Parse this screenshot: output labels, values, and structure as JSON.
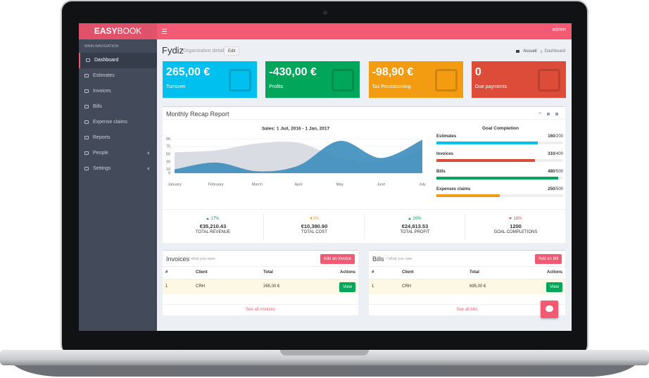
{
  "brand": {
    "bold": "EASY",
    "light": "BOOK"
  },
  "topbar": {
    "user": "adrien",
    "color": "#f25a74"
  },
  "sidebar": {
    "heading": "MAIN NAVIGATION",
    "items": [
      "Dashboard",
      "Estimates",
      "Invoices",
      "Bills",
      "Expense claims",
      "Reports",
      "People",
      "Settings"
    ],
    "active": 0,
    "submenus": [
      6,
      7
    ]
  },
  "header": {
    "title": "Fydiz",
    "subtitle": "Organization detail",
    "button": "Edit",
    "breadcrumb": [
      "Accueil",
      "Dashboard"
    ]
  },
  "cards": [
    {
      "value": "265,00 €",
      "label": "Turnover",
      "color": "#00c0ef"
    },
    {
      "value": "-430,00 €",
      "label": "Profits",
      "color": "#00a65a"
    },
    {
      "value": "-98,90 €",
      "label": "Tax Provisionning",
      "color": "#f39c12"
    },
    {
      "value": "0",
      "label": "Due payments",
      "color": "#dd4b39"
    }
  ],
  "recap": {
    "title": "Monthly Recap Report",
    "chart": {
      "type": "area",
      "title": "Sales: 1 Juil, 2016 - 1 Jan, 2017",
      "categories": [
        "January",
        "February",
        "March",
        "April",
        "May",
        "June",
        "July"
      ],
      "series": [
        {
          "color": "#d2d6de",
          "values": [
            55,
            60,
            78,
            80,
            40,
            30,
            62
          ]
        },
        {
          "color": "#3c8dbc",
          "values": [
            10,
            28,
            5,
            20,
            85,
            40,
            88
          ]
        }
      ],
      "ylim": [
        0,
        100
      ],
      "yticks": [
        0,
        10,
        30,
        50,
        70,
        90
      ],
      "grid": true
    },
    "goals_title": "Goal Completion",
    "goals": [
      {
        "label": "Estimates",
        "value": 160,
        "max": {
          "value": 200,
          "label": "/200"
        },
        "color": "#00c0ef"
      },
      {
        "label": "Invoices",
        "value": 310,
        "max": {
          "value": 400,
          "label": "/400"
        },
        "color": "#dd4b39"
      },
      {
        "label": "Bills",
        "value": 480,
        "max": {
          "value": 500,
          "label": "/500"
        },
        "color": "#00a65a"
      },
      {
        "label": "Expenses claims",
        "value": 250,
        "max": {
          "value": 500,
          "label": "/500"
        },
        "color": "#f39c12"
      }
    ],
    "stats": [
      {
        "change": "17%",
        "direction": "up",
        "amount": "€35,210.43",
        "label": "TOTAL REVENUE",
        "color": "#00a65a"
      },
      {
        "change": "0%",
        "direction": "flat",
        "amount": "€10,390.90",
        "label": "TOTAL COST",
        "color": "#f39c12"
      },
      {
        "change": "20%",
        "direction": "up",
        "amount": "€24,813.53",
        "label": "TOTAL PROFIT",
        "color": "#00a65a"
      },
      {
        "change": "18%",
        "direction": "down",
        "amount": "1200",
        "label": "GOAL COMPLETIONS",
        "color": "#dd4b39"
      }
    ]
  },
  "tables": [
    {
      "title": "Invoices",
      "subtitle": "/ what you earn",
      "button": "Add an invoice",
      "headers": [
        "#",
        "Client",
        "Total",
        "Actions"
      ],
      "rows": [
        [
          "1",
          "CRH",
          "265,00 €",
          "View"
        ]
      ],
      "footer": "See all invoices"
    },
    {
      "title": "Bills",
      "subtitle": "/ what you owe",
      "button": "Add an bill",
      "headers": [
        "#",
        "Client",
        "Total",
        "Actions"
      ],
      "rows": [
        [
          "1",
          "CRH",
          "695,00 €",
          "View"
        ]
      ],
      "footer": "See all bills"
    }
  ]
}
